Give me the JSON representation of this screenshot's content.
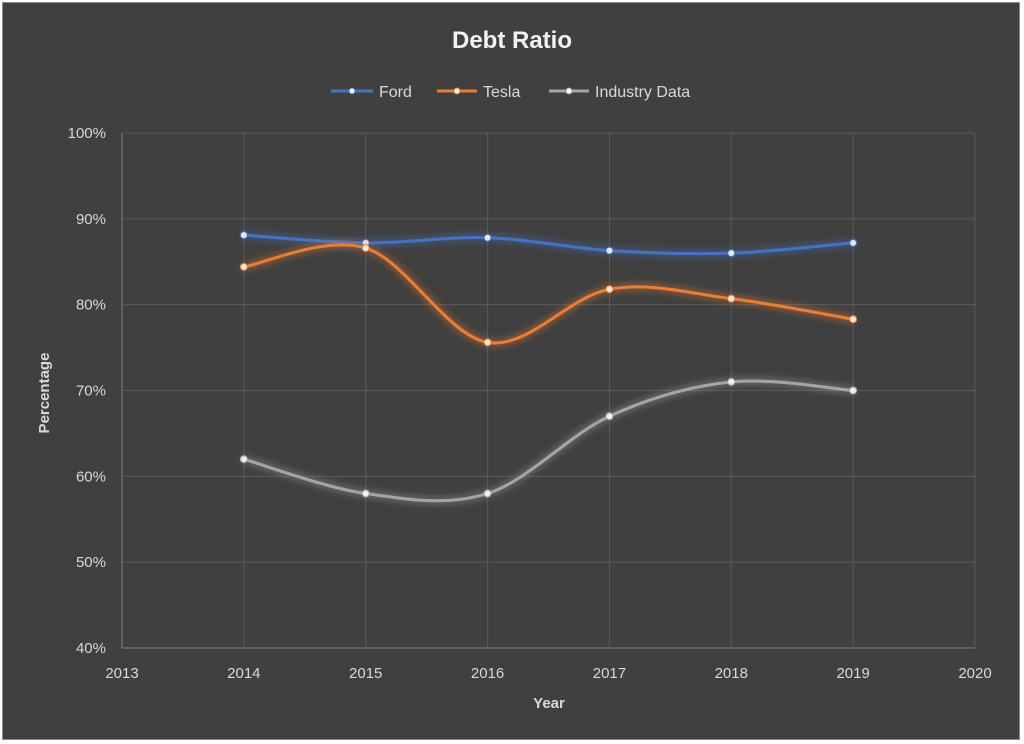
{
  "chart_data": {
    "type": "line",
    "title": "Debt Ratio",
    "xlabel": "Year",
    "ylabel": "Percentage",
    "xlim": [
      2013,
      2020
    ],
    "ylim": [
      0.4,
      1.0
    ],
    "x_ticks": [
      2013,
      2014,
      2015,
      2016,
      2017,
      2018,
      2019,
      2020
    ],
    "y_ticks": [
      0.4,
      0.5,
      0.6,
      0.7,
      0.8,
      0.9,
      1.0
    ],
    "y_tick_labels": [
      "40%",
      "50%",
      "60%",
      "70%",
      "80%",
      "90%",
      "100%"
    ],
    "grid": true,
    "smooth": true,
    "legend_position": "top",
    "x": [
      2014,
      2015,
      2016,
      2017,
      2018,
      2019
    ],
    "series": [
      {
        "name": "Ford",
        "color": "#4472c4",
        "values": [
          0.881,
          0.872,
          0.878,
          0.863,
          0.86,
          0.872
        ]
      },
      {
        "name": "Tesla",
        "color": "#ed7d31",
        "values": [
          0.844,
          0.866,
          0.756,
          0.818,
          0.807,
          0.783
        ]
      },
      {
        "name": "Industry Data",
        "color": "#a5a5a5",
        "values": [
          0.62,
          0.58,
          0.58,
          0.67,
          0.71,
          0.7
        ]
      }
    ]
  }
}
